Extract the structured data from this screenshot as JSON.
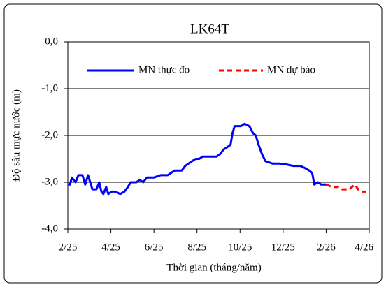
{
  "chart_data": {
    "type": "line",
    "title": "LK64T",
    "y_label": "Độ sâu mực nước (m)",
    "x_label": "Thời gian  (tháng/năm)",
    "xlim": [
      0,
      14
    ],
    "xticks": [
      {
        "value": 0,
        "label": "2/25"
      },
      {
        "value": 2,
        "label": "4/25"
      },
      {
        "value": 4,
        "label": "6/25"
      },
      {
        "value": 6,
        "label": "8/25"
      },
      {
        "value": 8,
        "label": "10/25"
      },
      {
        "value": 10,
        "label": "12/25"
      },
      {
        "value": 12,
        "label": "2/26"
      },
      {
        "value": 14,
        "label": "4/26"
      }
    ],
    "ylim": [
      -4,
      0
    ],
    "yticks": [
      {
        "value": -4,
        "label": "-4,0"
      },
      {
        "value": -3,
        "label": "-3,0"
      },
      {
        "value": -2,
        "label": "-2,0"
      },
      {
        "value": -1,
        "label": "-1,0"
      },
      {
        "value": 0,
        "label": "0,0"
      }
    ],
    "grid": true,
    "legend": "top",
    "series": [
      {
        "name": "MN thực đo",
        "color": "#0000ff",
        "dashed": false,
        "x": [
          0,
          0.1,
          0.19,
          0.36,
          0.49,
          0.68,
          0.81,
          0.94,
          1.04,
          1.14,
          1.33,
          1.46,
          1.56,
          1.65,
          1.78,
          1.88,
          2.04,
          2.21,
          2.43,
          2.63,
          2.79,
          2.92,
          3.18,
          3.34,
          3.5,
          3.67,
          3.99,
          4.31,
          4.64,
          4.96,
          5.29,
          5.45,
          5.61,
          5.77,
          5.94,
          6.1,
          6.26,
          6.58,
          6.91,
          7.07,
          7.23,
          7.4,
          7.56,
          7.65,
          7.75,
          8.04,
          8.21,
          8.43,
          8.6,
          8.73,
          8.86,
          9.02,
          9.18,
          9.5,
          9.83,
          10.15,
          10.48,
          10.8,
          11.03,
          11.22,
          11.35,
          11.45,
          11.61,
          11.77,
          12.0
        ],
        "values": [
          -3.05,
          -3.05,
          -2.9,
          -3.0,
          -2.85,
          -2.85,
          -3.05,
          -2.85,
          -3.0,
          -3.15,
          -3.15,
          -3.0,
          -3.2,
          -3.25,
          -3.1,
          -3.25,
          -3.2,
          -3.2,
          -3.25,
          -3.2,
          -3.1,
          -3.0,
          -3.0,
          -2.95,
          -3.0,
          -2.9,
          -2.9,
          -2.85,
          -2.85,
          -2.75,
          -2.75,
          -2.65,
          -2.6,
          -2.55,
          -2.5,
          -2.5,
          -2.45,
          -2.45,
          -2.45,
          -2.4,
          -2.3,
          -2.25,
          -2.2,
          -1.95,
          -1.8,
          -1.8,
          -1.75,
          -1.8,
          -1.95,
          -2.0,
          -2.2,
          -2.4,
          -2.55,
          -2.6,
          -2.6,
          -2.62,
          -2.65,
          -2.65,
          -2.7,
          -2.75,
          -2.8,
          -3.05,
          -3.0,
          -3.05,
          -3.05
        ]
      },
      {
        "name": "MN dự báo",
        "color": "#ff0000",
        "dashed": true,
        "x": [
          12.0,
          12.26,
          12.58,
          12.75,
          13.07,
          13.33,
          13.56,
          14.0
        ],
        "values": [
          -3.05,
          -3.1,
          -3.1,
          -3.15,
          -3.15,
          -3.05,
          -3.2,
          -3.2
        ]
      }
    ]
  }
}
